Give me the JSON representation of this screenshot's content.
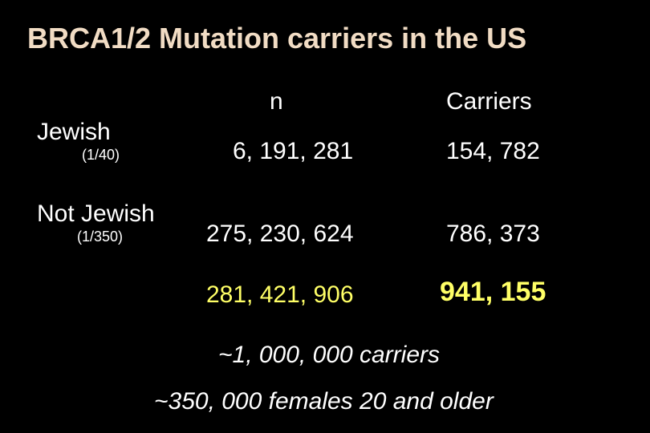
{
  "slide": {
    "title": "BRCA1/2 Mutation carriers in the US",
    "columns": {
      "n": "n",
      "carriers": "Carriers"
    },
    "rows": [
      {
        "label": "Jewish",
        "ratio": "(1/40)",
        "n": "6, 191, 281",
        "carriers": "154, 782"
      },
      {
        "label": "Not Jewish",
        "ratio": "(1/350)",
        "n": "275, 230, 624",
        "carriers": "786, 373"
      }
    ],
    "totals": {
      "n": "281, 421, 906",
      "carriers": "941, 155"
    },
    "notes": [
      "~1, 000, 000  carriers",
      "~350, 000 females 20 and older"
    ],
    "colors": {
      "background": "#000000",
      "title": "#f1dcc4",
      "text": "#ffffff",
      "highlight": "#ffff66"
    }
  }
}
